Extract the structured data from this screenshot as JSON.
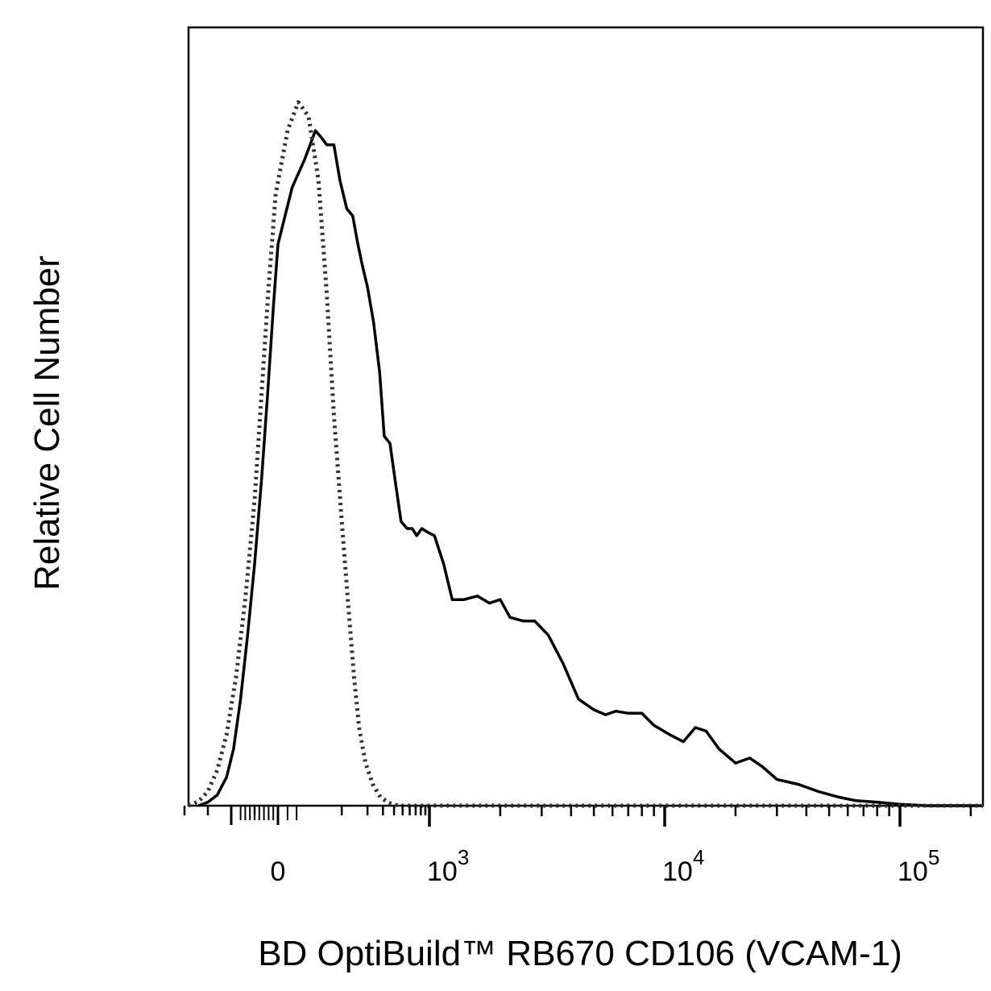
{
  "chart_data": {
    "type": "line",
    "title": "",
    "xlabel": "BD OptiBuild™ RB670 CD106 (VCAM-1)",
    "ylabel": "Relative Cell Number",
    "x_scale": "biexponential",
    "x_tick_labels": [
      {
        "value": 0,
        "base": "0",
        "exp": ""
      },
      {
        "value": 1000,
        "base": "10",
        "exp": "3"
      },
      {
        "value": 10000,
        "base": "10",
        "exp": "4"
      },
      {
        "value": 100000,
        "base": "10",
        "exp": "5"
      }
    ],
    "grid": false,
    "legend": "none",
    "series": [
      {
        "style": "solid",
        "color": "#000000",
        "points": [
          [
            -170,
            0.0
          ],
          [
            -150,
            0.005
          ],
          [
            -130,
            0.015
          ],
          [
            -110,
            0.04
          ],
          [
            -95,
            0.08
          ],
          [
            -80,
            0.15
          ],
          [
            -65,
            0.24
          ],
          [
            -50,
            0.34
          ],
          [
            -35,
            0.46
          ],
          [
            -22,
            0.58
          ],
          [
            -10,
            0.7
          ],
          [
            0,
            0.79
          ],
          [
            15,
            0.87
          ],
          [
            30,
            0.91
          ],
          [
            45,
            0.95
          ],
          [
            55,
            0.94
          ],
          [
            65,
            0.93
          ],
          [
            80,
            0.93
          ],
          [
            95,
            0.88
          ],
          [
            115,
            0.84
          ],
          [
            135,
            0.83
          ],
          [
            155,
            0.79
          ],
          [
            175,
            0.76
          ],
          [
            200,
            0.73
          ],
          [
            235,
            0.68
          ],
          [
            275,
            0.61
          ],
          [
            310,
            0.52
          ],
          [
            360,
            0.51
          ],
          [
            420,
            0.45
          ],
          [
            480,
            0.4
          ],
          [
            560,
            0.39
          ],
          [
            640,
            0.39
          ],
          [
            720,
            0.38
          ],
          [
            820,
            0.39
          ],
          [
            950,
            0.385
          ],
          [
            1050,
            0.38
          ],
          [
            1150,
            0.34
          ],
          [
            1250,
            0.29
          ],
          [
            1400,
            0.29
          ],
          [
            1600,
            0.295
          ],
          [
            1800,
            0.285
          ],
          [
            2000,
            0.29
          ],
          [
            2200,
            0.265
          ],
          [
            2500,
            0.26
          ],
          [
            2800,
            0.26
          ],
          [
            3200,
            0.24
          ],
          [
            3700,
            0.2
          ],
          [
            4300,
            0.15
          ],
          [
            5000,
            0.135
          ],
          [
            5600,
            0.128
          ],
          [
            6200,
            0.133
          ],
          [
            7000,
            0.13
          ],
          [
            8000,
            0.13
          ],
          [
            9000,
            0.113
          ],
          [
            10500,
            0.1
          ],
          [
            12000,
            0.09
          ],
          [
            13500,
            0.11
          ],
          [
            15000,
            0.105
          ],
          [
            17000,
            0.08
          ],
          [
            20000,
            0.06
          ],
          [
            23000,
            0.067
          ],
          [
            26000,
            0.055
          ],
          [
            30000,
            0.037
          ],
          [
            37000,
            0.03
          ],
          [
            45000,
            0.02
          ],
          [
            55000,
            0.012
          ],
          [
            65000,
            0.007
          ],
          [
            80000,
            0.005
          ],
          [
            100000,
            0.002
          ],
          [
            130000,
            0.0
          ],
          [
            260000,
            0.0
          ]
        ]
      },
      {
        "style": "dotted",
        "color": "#333333",
        "points": [
          [
            -200,
            0.0
          ],
          [
            -170,
            0.006
          ],
          [
            -150,
            0.02
          ],
          [
            -130,
            0.05
          ],
          [
            -110,
            0.1
          ],
          [
            -90,
            0.18
          ],
          [
            -70,
            0.29
          ],
          [
            -50,
            0.43
          ],
          [
            -35,
            0.58
          ],
          [
            -20,
            0.73
          ],
          [
            -5,
            0.86
          ],
          [
            10,
            0.95
          ],
          [
            22,
            0.99
          ],
          [
            35,
            0.97
          ],
          [
            50,
            0.88
          ],
          [
            65,
            0.72
          ],
          [
            80,
            0.55
          ],
          [
            100,
            0.4
          ],
          [
            120,
            0.28
          ],
          [
            140,
            0.18
          ],
          [
            160,
            0.11
          ],
          [
            190,
            0.06
          ],
          [
            230,
            0.03
          ],
          [
            280,
            0.012
          ],
          [
            350,
            0.004
          ],
          [
            450,
            0.0
          ],
          [
            260000,
            0.0
          ]
        ]
      }
    ]
  }
}
